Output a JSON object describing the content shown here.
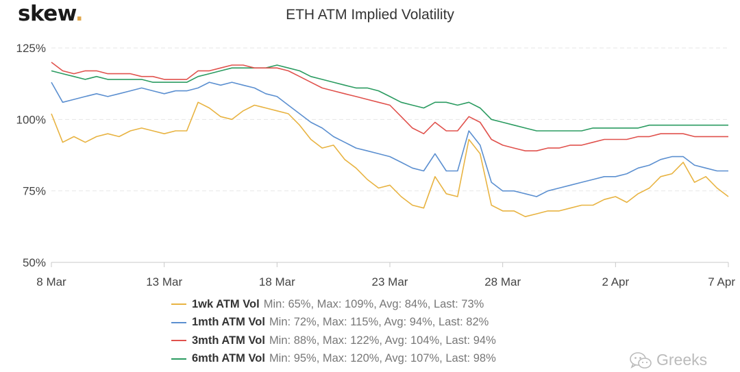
{
  "logo": {
    "text": "skew",
    "dot": "."
  },
  "watermark": {
    "text": "Greeks",
    "icon": "wechat-icon"
  },
  "chart_data": {
    "type": "line",
    "title": "ETH ATM Implied Volatility",
    "xlabel": "",
    "ylabel": "",
    "grid": true,
    "legend_position": "bottom-center",
    "xlim": [
      "2021-03-08",
      "2021-04-07"
    ],
    "ylim": [
      50,
      125
    ],
    "x_ticks": [
      {
        "date": "2021-03-08",
        "label": "8 Mar"
      },
      {
        "date": "2021-03-13",
        "label": "13 Mar"
      },
      {
        "date": "2021-03-18",
        "label": "18 Mar"
      },
      {
        "date": "2021-03-23",
        "label": "23 Mar"
      },
      {
        "date": "2021-03-28",
        "label": "28 Mar"
      },
      {
        "date": "2021-04-02",
        "label": "2 Apr"
      },
      {
        "date": "2021-04-07",
        "label": "7 Apr"
      }
    ],
    "y_ticks": [
      {
        "value": 50,
        "label": "50%"
      },
      {
        "value": 75,
        "label": "75%"
      },
      {
        "value": 100,
        "label": "100%"
      },
      {
        "value": 125,
        "label": "125%"
      }
    ],
    "x": [
      "2021-03-08",
      "2021-03-08 12:00",
      "2021-03-09",
      "2021-03-09 12:00",
      "2021-03-10",
      "2021-03-10 12:00",
      "2021-03-11",
      "2021-03-11 12:00",
      "2021-03-12",
      "2021-03-12 12:00",
      "2021-03-13",
      "2021-03-13 12:00",
      "2021-03-14",
      "2021-03-14 12:00",
      "2021-03-15",
      "2021-03-15 12:00",
      "2021-03-16",
      "2021-03-16 12:00",
      "2021-03-17",
      "2021-03-17 12:00",
      "2021-03-18",
      "2021-03-18 12:00",
      "2021-03-19",
      "2021-03-19 12:00",
      "2021-03-20",
      "2021-03-20 12:00",
      "2021-03-21",
      "2021-03-21 12:00",
      "2021-03-22",
      "2021-03-22 12:00",
      "2021-03-23",
      "2021-03-23 12:00",
      "2021-03-24",
      "2021-03-24 12:00",
      "2021-03-25",
      "2021-03-25 12:00",
      "2021-03-26",
      "2021-03-26 12:00",
      "2021-03-27",
      "2021-03-27 12:00",
      "2021-03-28",
      "2021-03-28 12:00",
      "2021-03-29",
      "2021-03-29 12:00",
      "2021-03-30",
      "2021-03-30 12:00",
      "2021-03-31",
      "2021-03-31 12:00",
      "2021-04-01",
      "2021-04-01 12:00",
      "2021-04-02",
      "2021-04-02 12:00",
      "2021-04-03",
      "2021-04-03 12:00",
      "2021-04-04",
      "2021-04-04 12:00",
      "2021-04-05",
      "2021-04-05 12:00",
      "2021-04-06",
      "2021-04-06 12:00",
      "2021-04-07"
    ],
    "series": [
      {
        "name": "1wk ATM Vol",
        "color": "#e8b341",
        "stats": "Min: 65%, Max: 109%, Avg: 84%, Last: 73%",
        "values": [
          102,
          92,
          94,
          92,
          94,
          95,
          94,
          96,
          97,
          96,
          95,
          96,
          96,
          106,
          104,
          101,
          100,
          103,
          105,
          104,
          103,
          102,
          98,
          93,
          90,
          91,
          86,
          83,
          79,
          76,
          77,
          73,
          70,
          69,
          80,
          74,
          73,
          93,
          88,
          70,
          68,
          68,
          66,
          67,
          68,
          68,
          69,
          70,
          70,
          72,
          73,
          71,
          74,
          76,
          80,
          81,
          85,
          78,
          80,
          76,
          73
        ]
      },
      {
        "name": "1mth ATM Vol",
        "color": "#5b8fd0",
        "stats": "Min: 72%, Max: 115%, Avg: 94%, Last: 82%",
        "values": [
          113,
          106,
          107,
          108,
          109,
          108,
          109,
          110,
          111,
          110,
          109,
          110,
          110,
          111,
          113,
          112,
          113,
          112,
          111,
          109,
          108,
          105,
          102,
          99,
          97,
          94,
          92,
          90,
          89,
          88,
          87,
          85,
          83,
          82,
          88,
          82,
          82,
          96,
          91,
          78,
          75,
          75,
          74,
          73,
          75,
          76,
          77,
          78,
          79,
          80,
          80,
          81,
          83,
          84,
          86,
          87,
          87,
          84,
          83,
          82,
          82
        ]
      },
      {
        "name": "3mth ATM Vol",
        "color": "#e0514c",
        "stats": "Min: 88%, Max: 122%, Avg: 104%, Last: 94%",
        "values": [
          120,
          117,
          116,
          117,
          117,
          116,
          116,
          116,
          115,
          115,
          114,
          114,
          114,
          117,
          117,
          118,
          119,
          119,
          118,
          118,
          118,
          117,
          115,
          113,
          111,
          110,
          109,
          108,
          107,
          106,
          105,
          101,
          97,
          95,
          99,
          96,
          96,
          101,
          99,
          93,
          91,
          90,
          89,
          89,
          90,
          90,
          91,
          91,
          92,
          93,
          93,
          93,
          94,
          94,
          95,
          95,
          95,
          94,
          94,
          94,
          94
        ]
      },
      {
        "name": "6mth ATM Vol",
        "color": "#2a9b60",
        "stats": "Min: 95%, Max: 120%, Avg: 107%, Last: 98%",
        "values": [
          117,
          116,
          115,
          114,
          115,
          114,
          114,
          114,
          114,
          113,
          113,
          113,
          113,
          115,
          116,
          117,
          118,
          118,
          118,
          118,
          119,
          118,
          117,
          115,
          114,
          113,
          112,
          111,
          111,
          110,
          108,
          106,
          105,
          104,
          106,
          106,
          105,
          106,
          104,
          100,
          99,
          98,
          97,
          96,
          96,
          96,
          96,
          96,
          97,
          97,
          97,
          97,
          97,
          98,
          98,
          98,
          98,
          98,
          98,
          98,
          98
        ]
      }
    ]
  }
}
